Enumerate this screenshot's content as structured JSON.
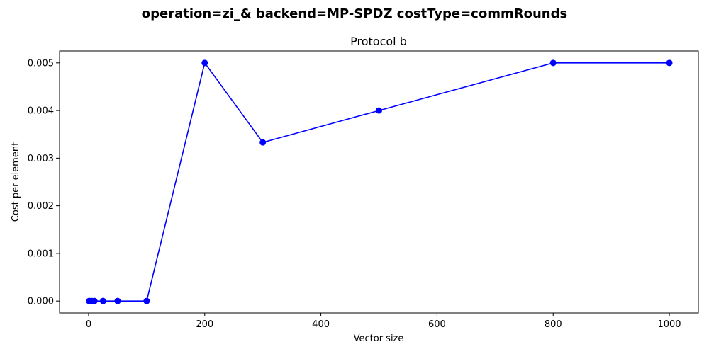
{
  "chart_data": {
    "type": "line",
    "suptitle": "operation=zi_& backend=MP-SPDZ costType=commRounds",
    "title": "Protocol b",
    "xlabel": "Vector size",
    "ylabel": "Cost per element",
    "xlim": [
      -50,
      1050
    ],
    "ylim": [
      -0.00025,
      0.00525
    ],
    "xticks": [
      0,
      200,
      400,
      600,
      800,
      1000
    ],
    "xtick_labels": [
      "0",
      "200",
      "400",
      "600",
      "800",
      "1000"
    ],
    "yticks": [
      0.0,
      0.001,
      0.002,
      0.003,
      0.004,
      0.005
    ],
    "ytick_labels": [
      "0.000",
      "0.001",
      "0.002",
      "0.003",
      "0.004",
      "0.005"
    ],
    "grid": false,
    "series": [
      {
        "color": "#0000ff",
        "marker": "circle",
        "x": [
          1,
          5,
          10,
          25,
          50,
          100,
          200,
          300,
          500,
          800,
          1000
        ],
        "y": [
          0.0,
          0.0,
          0.0,
          0.0,
          0.0,
          0.0,
          0.005,
          0.00333,
          0.004,
          0.005,
          0.005
        ]
      }
    ]
  }
}
